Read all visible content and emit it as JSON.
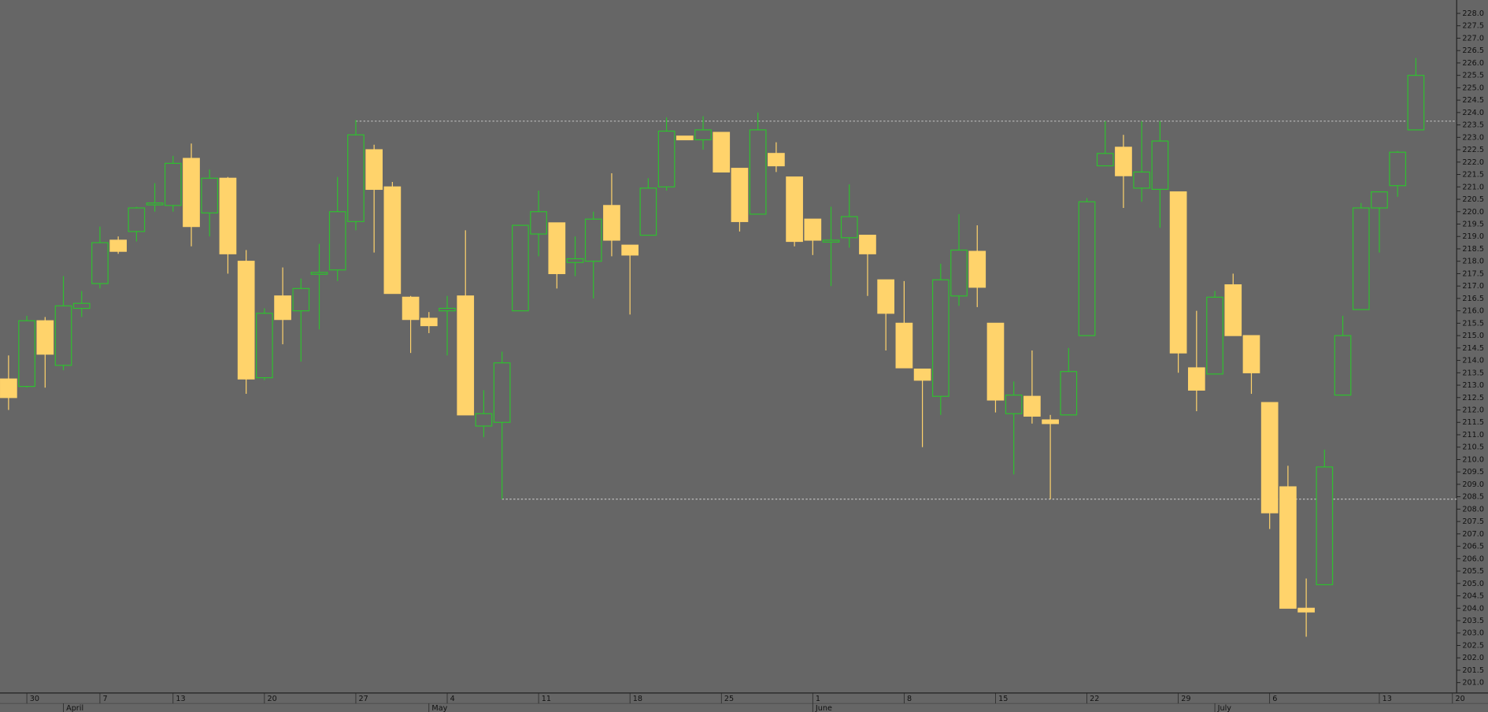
{
  "chart_data": {
    "type": "candlestick",
    "up_color": "#2fc02f",
    "down_color": "#ffd36b",
    "background": "#666666",
    "reference_line_color": "#e6e6e6",
    "categories": [
      null,
      "30",
      null,
      null,
      null,
      "7",
      null,
      null,
      null,
      "13",
      null,
      null,
      null,
      null,
      "20",
      null,
      null,
      null,
      null,
      "27",
      null,
      null,
      null,
      null,
      "4",
      null,
      null,
      null,
      null,
      "11",
      null,
      null,
      null,
      null,
      "18",
      null,
      null,
      null,
      null,
      "25",
      null,
      null,
      null,
      null,
      "1",
      null,
      null,
      null,
      null,
      "8",
      null,
      null,
      null,
      null,
      "15",
      null,
      null,
      null,
      null,
      "22",
      null,
      null,
      null,
      null,
      "29",
      null,
      null,
      null,
      null,
      "6",
      null,
      null,
      null,
      null,
      null,
      "13",
      null,
      null,
      null,
      "20"
    ],
    "month_labels": [
      null,
      null,
      null,
      "April",
      null,
      null,
      null,
      null,
      null,
      null,
      null,
      null,
      null,
      null,
      null,
      null,
      null,
      null,
      null,
      null,
      null,
      null,
      null,
      "May",
      null,
      null,
      null,
      null,
      null,
      null,
      null,
      null,
      null,
      null,
      null,
      null,
      null,
      null,
      null,
      null,
      null,
      null,
      null,
      null,
      "June",
      null,
      null,
      null,
      null,
      null,
      null,
      null,
      null,
      null,
      null,
      null,
      null,
      null,
      null,
      null,
      null,
      null,
      null,
      null,
      null,
      null,
      "July",
      null,
      null,
      null,
      null,
      null,
      null,
      null,
      null,
      null,
      null,
      null,
      null,
      null
    ],
    "open": [
      213.25,
      212.95,
      215.6,
      213.8,
      216.1,
      217.1,
      218.85,
      219.2,
      220.3,
      220.25,
      222.15,
      219.95,
      221.35,
      218.0,
      213.3,
      216.6,
      216.0,
      217.5,
      217.65,
      219.6,
      222.5,
      221.0,
      216.55,
      215.7,
      216.0,
      216.6,
      211.35,
      211.5,
      216.0,
      219.1,
      219.55,
      217.95,
      218.0,
      220.25,
      218.65,
      219.05,
      221.0,
      223.05,
      222.9,
      223.2,
      221.75,
      219.9,
      222.35,
      221.4,
      219.7,
      218.8,
      218.95,
      219.05,
      217.25,
      215.5,
      213.65,
      212.55,
      216.6,
      218.4,
      215.5,
      211.85,
      212.55,
      211.6,
      211.8,
      215.0,
      221.85,
      222.6,
      220.95,
      220.9,
      220.8,
      213.7,
      213.45,
      217.05,
      215.0,
      212.3,
      208.9,
      204.0,
      204.95,
      212.6,
      216.05,
      220.15,
      221.05,
      223.3,
      null,
      null
    ],
    "high": [
      214.2,
      215.8,
      215.75,
      217.4,
      216.8,
      219.4,
      219.0,
      220.2,
      221.15,
      222.25,
      222.75,
      221.7,
      221.4,
      218.45,
      216.1,
      217.75,
      217.3,
      218.7,
      221.4,
      223.7,
      222.7,
      221.2,
      216.6,
      215.95,
      216.6,
      219.25,
      212.8,
      214.35,
      219.45,
      220.85,
      219.55,
      219.0,
      220.0,
      221.55,
      218.65,
      221.35,
      223.8,
      223.05,
      223.85,
      223.2,
      221.75,
      224.0,
      222.8,
      221.4,
      219.7,
      220.2,
      221.1,
      219.05,
      217.25,
      217.2,
      213.65,
      217.9,
      219.9,
      219.45,
      215.5,
      213.15,
      214.4,
      211.8,
      214.5,
      220.55,
      223.65,
      223.1,
      223.65,
      223.65,
      220.8,
      216.0,
      216.8,
      217.5,
      215.0,
      212.3,
      209.75,
      205.2,
      210.4,
      215.8,
      220.35,
      220.8,
      222.45,
      226.2,
      null,
      null
    ],
    "low": [
      212.0,
      212.9,
      212.9,
      213.6,
      215.75,
      216.9,
      218.3,
      218.8,
      220.0,
      220.0,
      218.6,
      219.0,
      217.5,
      212.65,
      213.2,
      214.65,
      213.95,
      215.25,
      217.2,
      219.25,
      218.35,
      216.7,
      214.3,
      215.1,
      214.2,
      211.8,
      210.9,
      208.4,
      216.0,
      218.2,
      216.9,
      217.4,
      216.5,
      218.2,
      215.85,
      219.05,
      220.85,
      222.9,
      222.5,
      221.6,
      219.2,
      219.9,
      221.6,
      218.6,
      218.25,
      217.0,
      218.55,
      216.6,
      214.4,
      213.7,
      210.5,
      211.8,
      216.2,
      216.15,
      211.9,
      209.4,
      211.45,
      208.4,
      211.8,
      215.0,
      221.85,
      220.15,
      220.4,
      219.35,
      213.5,
      211.95,
      213.45,
      215.0,
      212.65,
      207.2,
      204.0,
      202.85,
      204.95,
      212.6,
      216.05,
      218.35,
      220.6,
      223.3,
      null,
      null
    ],
    "close": [
      212.5,
      215.6,
      214.25,
      216.2,
      216.3,
      218.75,
      218.4,
      220.15,
      220.35,
      221.95,
      219.4,
      221.35,
      218.3,
      213.25,
      215.9,
      215.65,
      216.9,
      217.55,
      220.0,
      223.1,
      220.9,
      216.7,
      215.65,
      215.4,
      216.1,
      211.8,
      211.85,
      213.9,
      219.45,
      220.0,
      217.5,
      218.1,
      219.7,
      218.85,
      218.25,
      220.95,
      223.25,
      222.9,
      223.3,
      221.6,
      219.6,
      223.3,
      221.85,
      218.8,
      218.85,
      218.85,
      219.8,
      218.3,
      215.9,
      213.7,
      213.2,
      217.25,
      218.45,
      216.95,
      212.4,
      212.6,
      211.75,
      211.45,
      213.55,
      220.4,
      222.35,
      221.45,
      221.6,
      222.85,
      214.3,
      212.8,
      216.55,
      215.0,
      213.5,
      207.85,
      204.0,
      203.85,
      209.7,
      215.0,
      220.15,
      220.8,
      222.4,
      225.5,
      null,
      null
    ],
    "reference_lines": [
      223.65,
      208.4
    ],
    "ylim": [
      200.58,
      228.54
    ],
    "yticks": [
      {
        "value": 201,
        "label": "201.0"
      },
      {
        "value": 201.5,
        "label": "201.5"
      },
      {
        "value": 202,
        "label": "202.0"
      },
      {
        "value": 202.5,
        "label": "202.5"
      },
      {
        "value": 203,
        "label": "203.0"
      },
      {
        "value": 203.5,
        "label": "203.5"
      },
      {
        "value": 204,
        "label": "204.0"
      },
      {
        "value": 204.5,
        "label": "204.5"
      },
      {
        "value": 205,
        "label": "205.0"
      },
      {
        "value": 205.5,
        "label": "205.5"
      },
      {
        "value": 206,
        "label": "206.0"
      },
      {
        "value": 206.5,
        "label": "206.5"
      },
      {
        "value": 207,
        "label": "207.0"
      },
      {
        "value": 207.5,
        "label": "207.5"
      },
      {
        "value": 208,
        "label": "208.0"
      },
      {
        "value": 208.5,
        "label": "208.5"
      },
      {
        "value": 209,
        "label": "209.0"
      },
      {
        "value": 209.5,
        "label": "209.5"
      },
      {
        "value": 210,
        "label": "210.0"
      },
      {
        "value": 210.5,
        "label": "210.5"
      },
      {
        "value": 211,
        "label": "211.0"
      },
      {
        "value": 211.5,
        "label": "211.5"
      },
      {
        "value": 212,
        "label": "212.0"
      },
      {
        "value": 212.5,
        "label": "212.5"
      },
      {
        "value": 213,
        "label": "213.0"
      },
      {
        "value": 213.5,
        "label": "213.5"
      },
      {
        "value": 214,
        "label": "214.0"
      },
      {
        "value": 214.5,
        "label": "214.5"
      },
      {
        "value": 215,
        "label": "215.0"
      },
      {
        "value": 215.5,
        "label": "215.5"
      },
      {
        "value": 216,
        "label": "216.0"
      },
      {
        "value": 216.5,
        "label": "216.5"
      },
      {
        "value": 217,
        "label": "217.0"
      },
      {
        "value": 217.5,
        "label": "217.5"
      },
      {
        "value": 218,
        "label": "218.0"
      },
      {
        "value": 218.5,
        "label": "218.5"
      },
      {
        "value": 219,
        "label": "219.0"
      },
      {
        "value": 219.5,
        "label": "219.5"
      },
      {
        "value": 220,
        "label": "220.0"
      },
      {
        "value": 220.5,
        "label": "220.5"
      },
      {
        "value": 221,
        "label": "221.0"
      },
      {
        "value": 221.5,
        "label": "221.5"
      },
      {
        "value": 222,
        "label": "222.0"
      },
      {
        "value": 222.5,
        "label": "222.5"
      },
      {
        "value": 223,
        "label": "223.0"
      },
      {
        "value": 223.5,
        "label": "223.5"
      },
      {
        "value": 224,
        "label": "224.0"
      },
      {
        "value": 224.5,
        "label": "224.5"
      },
      {
        "value": 225,
        "label": "225.0"
      },
      {
        "value": 225.5,
        "label": "225.5"
      },
      {
        "value": 226,
        "label": "226.0"
      },
      {
        "value": 226.5,
        "label": "226.5"
      },
      {
        "value": 227,
        "label": "227.0"
      },
      {
        "value": 227.5,
        "label": "227.5"
      },
      {
        "value": 228,
        "label": "228.0"
      }
    ]
  }
}
